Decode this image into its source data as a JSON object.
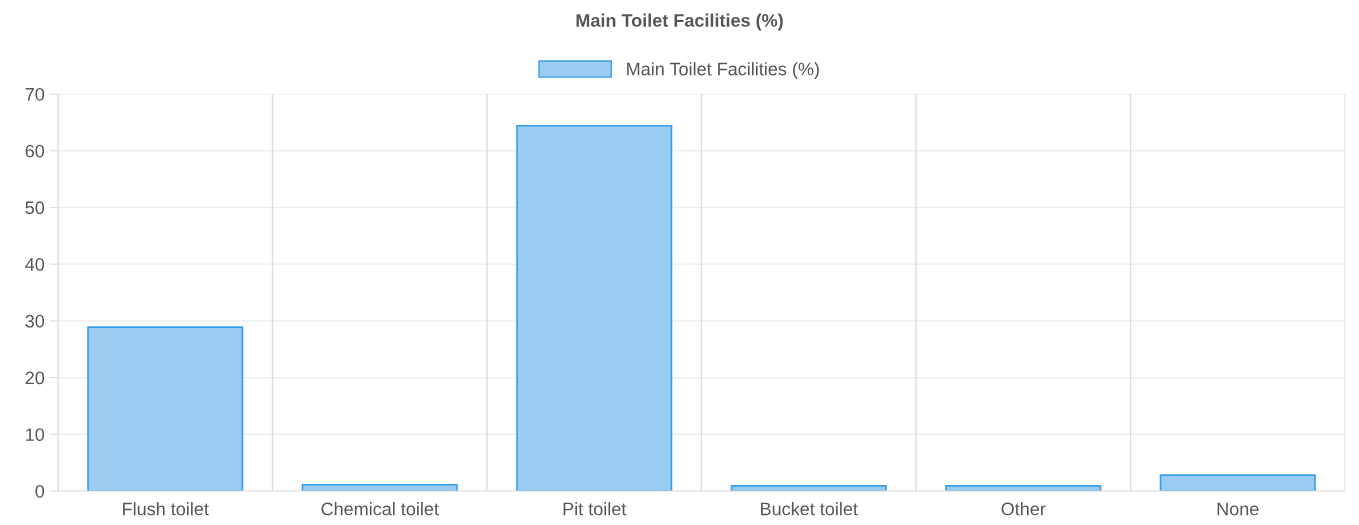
{
  "chart_data": {
    "type": "bar",
    "title": "Main Toilet Facilities (%)",
    "categories": [
      "Flush toilet",
      "Chemical toilet",
      "Pit toilet",
      "Bucket toilet",
      "Other",
      "None"
    ],
    "series": [
      {
        "name": "Main Toilet Facilities (%)",
        "color": "#9bcdf2",
        "values": [
          28.9,
          1.1,
          64.4,
          0.9,
          0.9,
          2.8
        ]
      }
    ],
    "ylim": [
      0,
      70
    ],
    "yticks": [
      0,
      10,
      20,
      30,
      40,
      50,
      60,
      70
    ],
    "grid": true,
    "legend": "top"
  }
}
